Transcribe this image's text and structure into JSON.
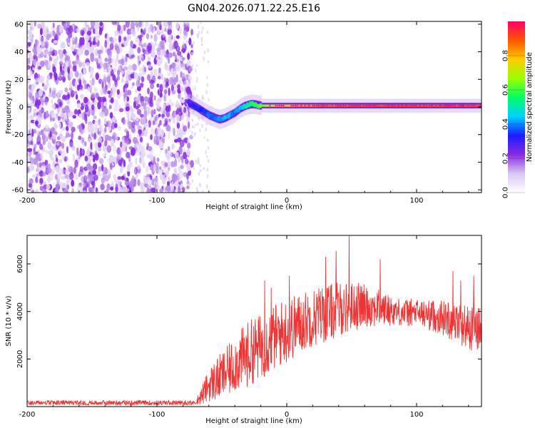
{
  "figure": {
    "title": "GN04.2026.071.22.25.E16"
  },
  "chart_data": [
    {
      "type": "heatmap",
      "title": "GN04.2026.071.22.25.E16",
      "xlabel": "Height of straight line (km)",
      "ylabel": "Frequency (Hz)",
      "xlim": [
        -200,
        150
      ],
      "ylim": [
        -62,
        62
      ],
      "x_ticks": [
        -200,
        -100,
        0,
        100
      ],
      "y_ticks": [
        -60,
        -40,
        -20,
        0,
        20,
        40,
        60
      ],
      "noise_region_x": [
        -200,
        -73
      ],
      "sparse_noise_x": [
        -73,
        -60
      ],
      "signal_ridge": {
        "x": [
          -76,
          -70,
          -65,
          -60,
          -55,
          -52,
          -48,
          -44,
          -40,
          -36,
          -32,
          -28,
          -25,
          -20,
          -15,
          -10,
          -5,
          0,
          20,
          50,
          100,
          150
        ],
        "frequency": [
          3,
          0,
          -3,
          -6,
          -8,
          -9,
          -8,
          -6,
          -4,
          -1,
          1,
          2,
          2,
          1,
          1,
          1,
          1,
          1,
          1,
          1,
          1,
          1
        ],
        "amplitude": [
          0.3,
          0.35,
          0.35,
          0.4,
          0.4,
          0.42,
          0.45,
          0.45,
          0.4,
          0.45,
          0.5,
          0.55,
          0.6,
          0.65,
          0.7,
          0.75,
          0.8,
          0.85,
          0.9,
          0.95,
          0.95,
          0.95
        ]
      },
      "colorbar": {
        "label": "Normalized spectral amplitude",
        "range": [
          0,
          1
        ],
        "ticks": [
          0.0,
          0.2,
          0.4,
          0.6,
          0.8
        ],
        "colormap": [
          "#ffffff",
          "#d9c7f5",
          "#8a2be2",
          "#1a1aff",
          "#00d0ff",
          "#00ff66",
          "#9aff00",
          "#ffcc00",
          "#ff5500",
          "#ff0066"
        ]
      }
    },
    {
      "type": "line",
      "xlabel": "Height of straight line (km)",
      "ylabel": "SNR (10 * v/v)",
      "xlim": [
        -200,
        150
      ],
      "ylim": [
        0,
        7200
      ],
      "x_ticks": [
        -200,
        -100,
        0,
        100
      ],
      "y_ticks": [
        2000,
        4000,
        6000
      ],
      "series": [
        {
          "color": "#ee3333",
          "x": [
            -200,
            -180,
            -160,
            -140,
            -120,
            -100,
            -80,
            -70,
            -65,
            -60,
            -55,
            -50,
            -45,
            -40,
            -35,
            -30,
            -25,
            -20,
            -15,
            -10,
            -5,
            0,
            5,
            10,
            15,
            20,
            25,
            30,
            35,
            40,
            45,
            50,
            55,
            60,
            65,
            70,
            75,
            80,
            85,
            90,
            95,
            100,
            105,
            110,
            115,
            120,
            125,
            130,
            135,
            140,
            145,
            150
          ],
          "trend": [
            150,
            150,
            150,
            150,
            150,
            160,
            170,
            200,
            500,
            900,
            1100,
            1300,
            1500,
            1800,
            2000,
            2200,
            2400,
            2500,
            2700,
            2900,
            3050,
            3200,
            3350,
            3500,
            3650,
            3750,
            3850,
            3950,
            4000,
            4100,
            4150,
            4200,
            4250,
            4250,
            4200,
            4150,
            4100,
            4050,
            4000,
            3950,
            3950,
            3950,
            3900,
            3850,
            3800,
            3750,
            3650,
            3550,
            3450,
            3350,
            3250,
            3200
          ],
          "spread": [
            80,
            80,
            80,
            80,
            80,
            90,
            90,
            100,
            450,
            700,
            900,
            1000,
            1100,
            1200,
            1300,
            1400,
            1400,
            1400,
            1400,
            1400,
            1400,
            1400,
            1350,
            1300,
            1250,
            1250,
            1250,
            1250,
            1200,
            1150,
            1100,
            1050,
            1000,
            900,
            850,
            800,
            700,
            650,
            600,
            600,
            600,
            600,
            600,
            650,
            700,
            750,
            800,
            850,
            900,
            950,
            1000,
            1000
          ],
          "peaks": [
            [
              -17,
              5300
            ],
            [
              -12,
              5000
            ],
            [
              2,
              5500
            ],
            [
              30,
              6300
            ],
            [
              38,
              6550
            ],
            [
              48,
              7200
            ],
            [
              72,
              6200
            ],
            [
              128,
              5700
            ],
            [
              134,
              5300
            ],
            [
              144,
              5500
            ]
          ]
        }
      ]
    }
  ]
}
